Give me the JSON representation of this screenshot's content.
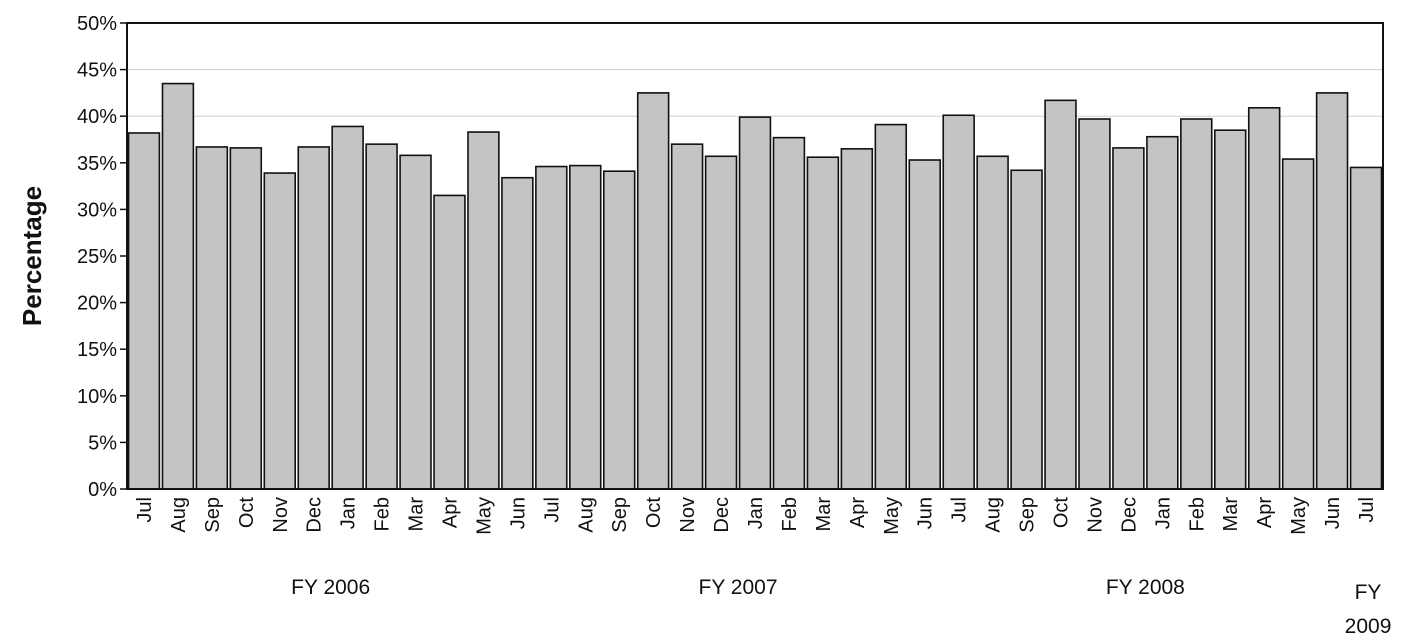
{
  "chart_data": {
    "type": "bar",
    "title": "",
    "xlabel": "",
    "ylabel": "Percentage",
    "ylim": [
      0,
      50
    ],
    "yticks": [
      "0%",
      "5%",
      "10%",
      "15%",
      "20%",
      "25%",
      "30%",
      "35%",
      "40%",
      "45%",
      "50%"
    ],
    "grid": false,
    "categories": [
      "Jul",
      "Aug",
      "Sep",
      "Oct",
      "Nov",
      "Dec",
      "Jan",
      "Feb",
      "Mar",
      "Apr",
      "May",
      "Jun",
      "Jul",
      "Aug",
      "Sep",
      "Oct",
      "Nov",
      "Dec",
      "Jan",
      "Feb",
      "Mar",
      "Apr",
      "May",
      "Jun",
      "Jul",
      "Aug",
      "Sep",
      "Oct",
      "Nov",
      "Dec",
      "Jan",
      "Feb",
      "Mar",
      "Apr",
      "May",
      "Jun",
      "Jul"
    ],
    "values": [
      38.2,
      43.5,
      36.7,
      36.6,
      33.9,
      36.7,
      38.9,
      37.0,
      35.8,
      31.5,
      38.3,
      33.4,
      34.6,
      34.7,
      34.1,
      42.5,
      37.0,
      35.7,
      39.9,
      37.7,
      35.6,
      36.5,
      39.1,
      35.3,
      40.1,
      35.7,
      34.2,
      41.7,
      39.7,
      36.6,
      37.8,
      39.7,
      38.5,
      40.9,
      35.4,
      42.5,
      34.5
    ],
    "groups": [
      {
        "label": "FY 2006",
        "start": 0,
        "end": 11
      },
      {
        "label": "FY 2007",
        "start": 12,
        "end": 23
      },
      {
        "label": "FY 2008",
        "start": 24,
        "end": 35
      },
      {
        "label": "FY\n2009",
        "start": 36,
        "end": 36
      }
    ]
  }
}
